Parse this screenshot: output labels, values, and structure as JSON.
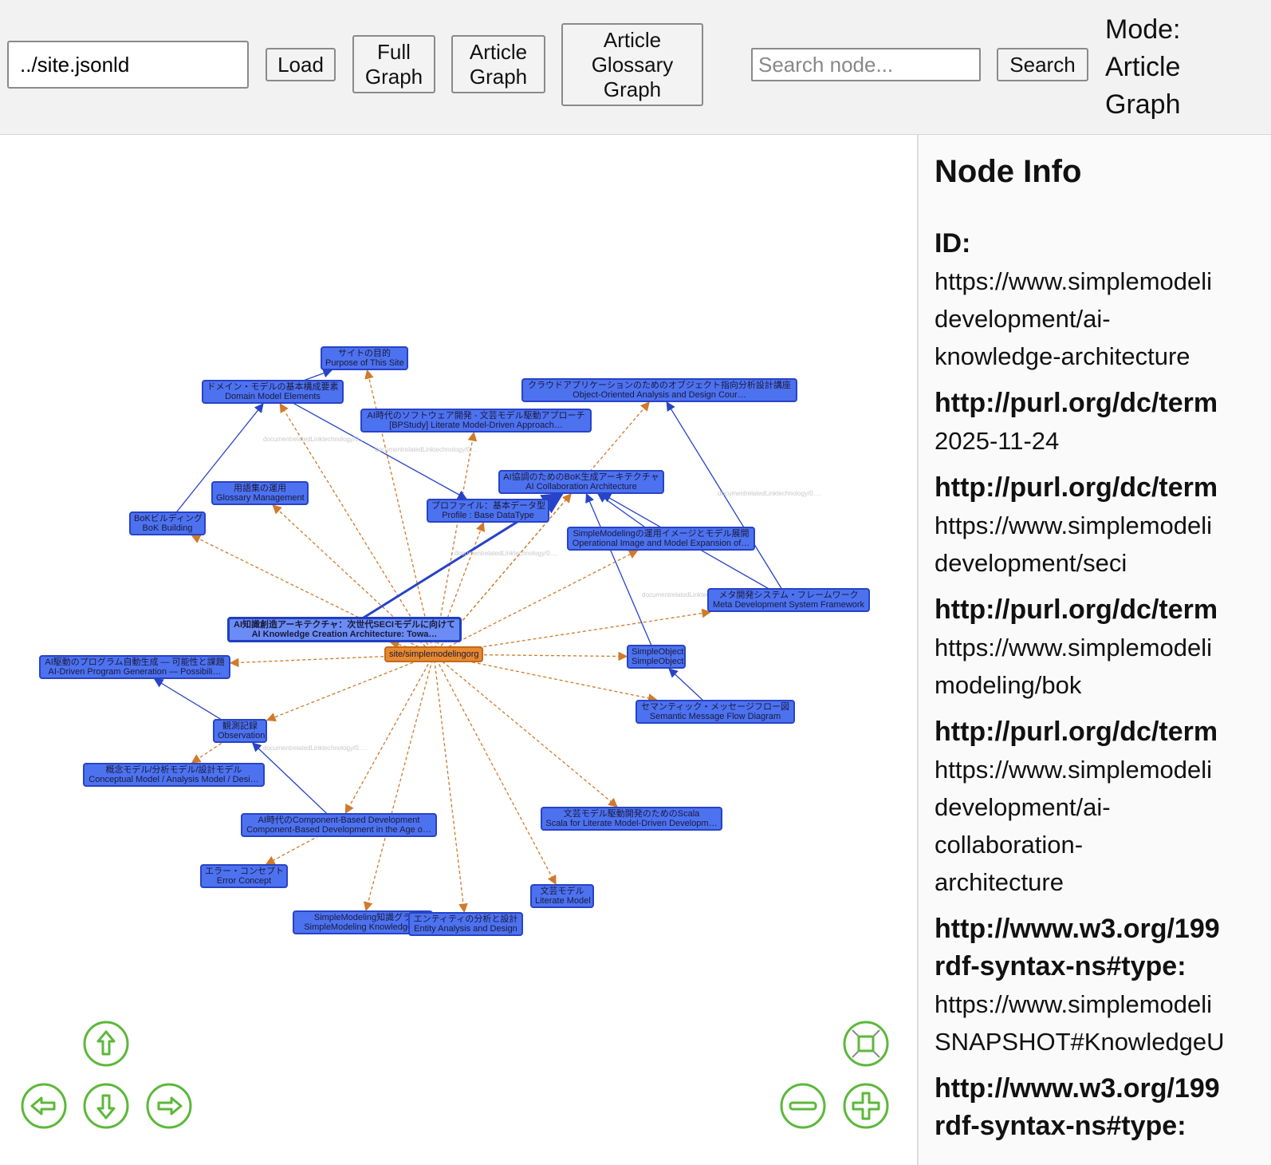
{
  "header": {
    "path_value": "../site.jsonld",
    "load": "Load",
    "full_graph": "Full Graph",
    "article_glossary_graph": "Article Glossary Graph",
    "article_graph": "Article Graph",
    "search_placeholder": "Search node...",
    "search": "Search",
    "mode_label": "Mode:",
    "mode_value": "Article Graph"
  },
  "graph": {
    "colors": {
      "node": "#4d72f0",
      "site": "#e8892f",
      "solid_edge": "#2743c7",
      "dashed_edge": "#d07a2a",
      "controls": "#5cb83a"
    },
    "nodes": [
      {
        "ja": "サイトの目的",
        "en": "Purpose of This Site"
      },
      {
        "ja": "ドメイン・モデルの基本構成要素",
        "en": "Domain Model Elements"
      },
      {
        "ja": "AI時代のソフトウェア開発 - 文芸モデル駆動アプローチ",
        "en": "[BPStudy] Literate Model-Driven Approach…"
      },
      {
        "ja": "クラウドアプリケーションのためのオブジェクト指向分析設計講座",
        "en": "Object-Oriented Analysis and Design Cour…"
      },
      {
        "ja": "AI協調のためのBoK生成アーキテクチャ",
        "en": "AI Collaboration Architecture"
      },
      {
        "ja": "プロファイル：基本データ型",
        "en": "Profile : Base DataType"
      },
      {
        "ja": "用語集の運用",
        "en": "Glossary Management"
      },
      {
        "ja": "BoKビルディング",
        "en": "BoK Building"
      },
      {
        "ja": "SimpleModelingの運用イメージとモデル展開",
        "en": "Operational Image and Model Expansion of…"
      },
      {
        "ja": "メタ開発システム・フレームワーク",
        "en": "Meta Development System Framework"
      },
      {
        "ja": "AI知識創造アーキテクチャ：次世代SECIモデルに向けて",
        "en": "AI Knowledge Creation Architecture: Towa…",
        "selected": true
      },
      {
        "ja": "",
        "en": "site/simplemodelingorg",
        "site": true
      },
      {
        "ja": "AI駆動のプログラム自動生成 — 可能性と課題",
        "en": "AI-Driven Program Generation — Possibili…"
      },
      {
        "ja": "SimpleObject",
        "en": "SimpleObject"
      },
      {
        "ja": "セマンティック・メッセージフロー図",
        "en": "Semantic Message Flow Diagram"
      },
      {
        "ja": "観測記録",
        "en": "Observation"
      },
      {
        "ja": "概念モデル/分析モデル/設計モデル",
        "en": "Conceptual Model / Analysis Model / Desi…"
      },
      {
        "ja": "AI時代のComponent-Based Development",
        "en": "Component-Based Development in the Age o…"
      },
      {
        "ja": "文芸モデル駆動開発のためのScala",
        "en": "Scala for Literate Model-Driven Developm…"
      },
      {
        "ja": "エラー・コンセプト",
        "en": "Error Concept"
      },
      {
        "ja": "文芸モデル",
        "en": "Literate Model"
      },
      {
        "ja": "SimpleModeling知識グラ",
        "en": "SimpleModeling Knowledge G"
      },
      {
        "ja": "エンティティの分析と設計",
        "en": "Entity Analysis and Design"
      }
    ],
    "edges": [
      {
        "from": 11,
        "to": 0,
        "style": "dashed"
      },
      {
        "from": 11,
        "to": 1,
        "style": "dashed"
      },
      {
        "from": 11,
        "to": 2,
        "style": "dashed"
      },
      {
        "from": 11,
        "to": 3,
        "style": "dashed"
      },
      {
        "from": 11,
        "to": 4,
        "style": "dashed"
      },
      {
        "from": 11,
        "to": 5,
        "style": "dashed"
      },
      {
        "from": 11,
        "to": 6,
        "style": "dashed"
      },
      {
        "from": 11,
        "to": 7,
        "style": "dashed"
      },
      {
        "from": 11,
        "to": 8,
        "style": "dashed"
      },
      {
        "from": 11,
        "to": 9,
        "style": "dashed"
      },
      {
        "from": 11,
        "to": 10,
        "style": "dashed"
      },
      {
        "from": 11,
        "to": 12,
        "style": "dashed"
      },
      {
        "from": 11,
        "to": 13,
        "style": "dashed"
      },
      {
        "from": 11,
        "to": 14,
        "style": "dashed"
      },
      {
        "from": 11,
        "to": 15,
        "style": "dashed"
      },
      {
        "from": 15,
        "to": 16,
        "style": "dashed"
      },
      {
        "from": 11,
        "to": 17,
        "style": "dashed"
      },
      {
        "from": 11,
        "to": 18,
        "style": "dashed"
      },
      {
        "from": 17,
        "to": 19,
        "style": "dashed"
      },
      {
        "from": 11,
        "to": 20,
        "style": "dashed"
      },
      {
        "from": 11,
        "to": 21,
        "style": "dashed"
      },
      {
        "from": 11,
        "to": 22,
        "style": "dashed"
      },
      {
        "from": 10,
        "to": 4,
        "style": "solid"
      },
      {
        "from": 1,
        "to": 0,
        "style": "solid"
      },
      {
        "from": 7,
        "to": 1,
        "style": "solid"
      },
      {
        "from": 1,
        "to": 5,
        "style": "solid"
      },
      {
        "from": 8,
        "to": 4,
        "style": "solid"
      },
      {
        "from": 9,
        "to": 4,
        "style": "solid"
      },
      {
        "from": 9,
        "to": 3,
        "style": "solid"
      },
      {
        "from": 14,
        "to": 13,
        "style": "solid"
      },
      {
        "from": 13,
        "to": 4,
        "style": "solid"
      },
      {
        "from": 15,
        "to": 12,
        "style": "solid"
      },
      {
        "from": 17,
        "to": 15,
        "style": "solid"
      }
    ],
    "edge_label": "documentrelatedLinktechnology/0…."
  },
  "controls": {
    "up": "arrow-up-icon",
    "down": "arrow-down-icon",
    "left": "arrow-left-icon",
    "right": "arrow-right-icon",
    "fit": "fit-icon",
    "zoom_out": "minus-icon",
    "zoom_in": "plus-icon"
  },
  "sidebar": {
    "title": "Node Info",
    "props": [
      {
        "key": "ID:",
        "lines": [
          "https://www.simplemodeli",
          "development/ai-",
          "knowledge-architecture"
        ]
      },
      {
        "key": "http://purl.org/dc/term",
        "lines": [
          "2025-11-24"
        ]
      },
      {
        "key": "http://purl.org/dc/term",
        "lines": [
          "https://www.simplemodeli",
          "development/seci"
        ]
      },
      {
        "key": "http://purl.org/dc/term",
        "lines": [
          "https://www.simplemodeli",
          "modeling/bok"
        ]
      },
      {
        "key": "http://purl.org/dc/term",
        "lines": [
          "https://www.simplemodeli",
          "development/ai-",
          "collaboration-",
          "architecture"
        ]
      },
      {
        "key": "http://www.w3.org/199\nrdf-syntax-ns#type:",
        "lines": [
          "https://www.simplemodeli",
          "SNAPSHOT#KnowledgeU"
        ]
      },
      {
        "key": "http://www.w3.org/199\nrdf-syntax-ns#type:",
        "lines": []
      }
    ]
  }
}
